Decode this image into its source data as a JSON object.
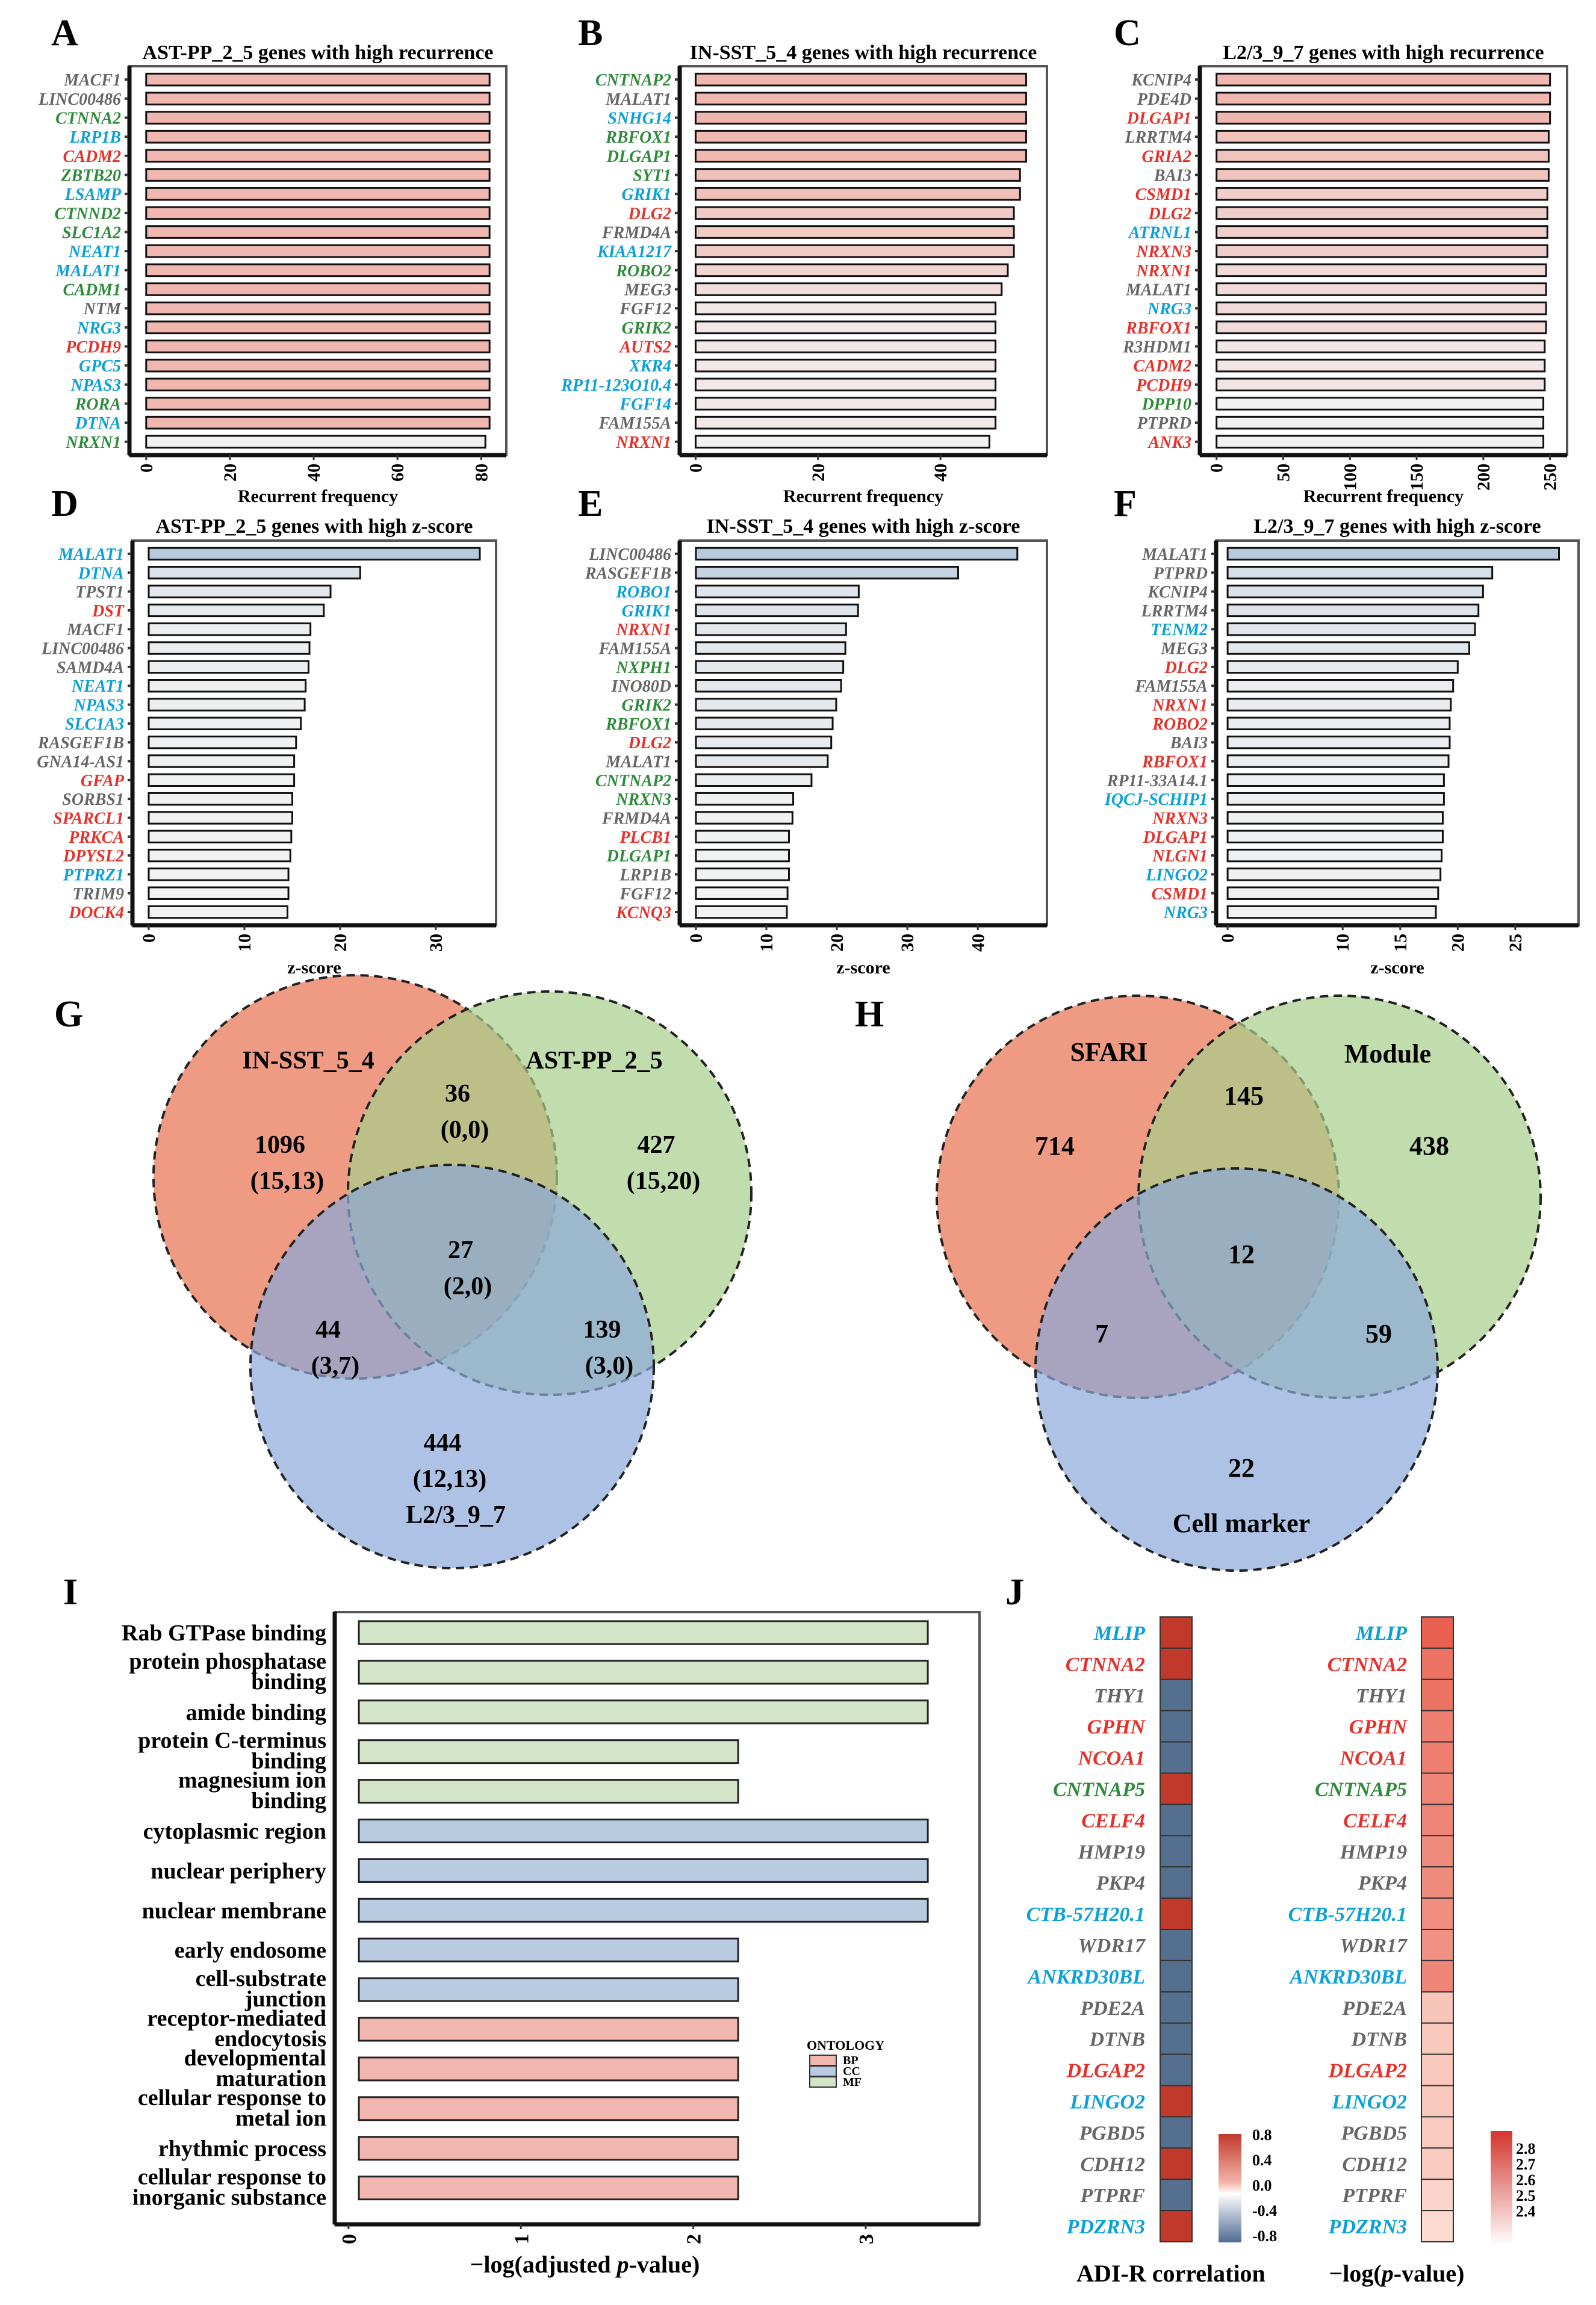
{
  "gene_colors": {
    "gray": "#666666",
    "green": "#2E8B3A",
    "blue": "#0AA0D8",
    "red": "#E8302A"
  },
  "chart_data": [
    {
      "id": "A",
      "panel_label": "A",
      "type": "bar",
      "orientation": "horizontal",
      "title": "AST-PP_2_5 genes with high recurrence",
      "xlabel": "Recurrent frequency",
      "xlim": [
        -4,
        86
      ],
      "ticks": [
        0,
        20,
        40,
        60,
        80
      ],
      "palette": "red",
      "genes": [
        [
          "MACF1",
          82,
          "gray"
        ],
        [
          "LINC00486",
          82,
          "gray"
        ],
        [
          "CTNNA2",
          82,
          "green"
        ],
        [
          "LRP1B",
          82,
          "blue"
        ],
        [
          "CADM2",
          82,
          "red"
        ],
        [
          "ZBTB20",
          82,
          "green"
        ],
        [
          "LSAMP",
          82,
          "blue"
        ],
        [
          "CTNND2",
          82,
          "green"
        ],
        [
          "SLC1A2",
          82,
          "green"
        ],
        [
          "NEAT1",
          82,
          "blue"
        ],
        [
          "MALAT1",
          82,
          "blue"
        ],
        [
          "CADM1",
          82,
          "green"
        ],
        [
          "NTM",
          82,
          "gray"
        ],
        [
          "NRG3",
          82,
          "blue"
        ],
        [
          "PCDH9",
          82,
          "red"
        ],
        [
          "GPC5",
          82,
          "blue"
        ],
        [
          "NPAS3",
          82,
          "blue"
        ],
        [
          "RORA",
          82,
          "green"
        ],
        [
          "DTNA",
          82,
          "blue"
        ],
        [
          "NRXN1",
          81,
          "green"
        ]
      ]
    },
    {
      "id": "B",
      "panel_label": "B",
      "type": "bar",
      "orientation": "horizontal",
      "title": "IN-SST_5_4 genes with high recurrence",
      "xlabel": "Recurrent frequency",
      "xlim": [
        -2.6,
        57.4
      ],
      "ticks": [
        0,
        20,
        40
      ],
      "palette": "red",
      "genes": [
        [
          "CNTNAP2",
          54,
          "green"
        ],
        [
          "MALAT1",
          54,
          "gray"
        ],
        [
          "SNHG14",
          54,
          "blue"
        ],
        [
          "RBFOX1",
          54,
          "green"
        ],
        [
          "DLGAP1",
          54,
          "green"
        ],
        [
          "SYT1",
          53,
          "green"
        ],
        [
          "GRIK1",
          53,
          "blue"
        ],
        [
          "DLG2",
          52,
          "red"
        ],
        [
          "FRMD4A",
          52,
          "gray"
        ],
        [
          "KIAA1217",
          52,
          "blue"
        ],
        [
          "ROBO2",
          51,
          "green"
        ],
        [
          "MEG3",
          50,
          "gray"
        ],
        [
          "FGF12",
          49,
          "gray"
        ],
        [
          "GRIK2",
          49,
          "green"
        ],
        [
          "AUTS2",
          49,
          "red"
        ],
        [
          "XKR4",
          49,
          "blue"
        ],
        [
          "RP11-123O10.4",
          49,
          "blue"
        ],
        [
          "FGF14",
          49,
          "blue"
        ],
        [
          "FAM155A",
          49,
          "gray"
        ],
        [
          "NRXN1",
          48,
          "red"
        ]
      ]
    },
    {
      "id": "C",
      "panel_label": "C",
      "type": "bar",
      "orientation": "horizontal",
      "title": "L2/3_9_7 genes with high recurrence",
      "xlabel": "Recurrent frequency",
      "xlim": [
        -12.5,
        262.8
      ],
      "ticks": [
        0,
        50,
        100,
        150,
        200,
        250
      ],
      "palette": "red",
      "genes": [
        [
          "KCNIP4",
          250,
          "gray"
        ],
        [
          "PDE4D",
          250,
          "gray"
        ],
        [
          "DLGAP1",
          250,
          "red"
        ],
        [
          "LRRTM4",
          249,
          "gray"
        ],
        [
          "GRIA2",
          249,
          "red"
        ],
        [
          "BAI3",
          249,
          "gray"
        ],
        [
          "CSMD1",
          248,
          "red"
        ],
        [
          "DLG2",
          248,
          "red"
        ],
        [
          "ATRNL1",
          248,
          "blue"
        ],
        [
          "NRXN3",
          248,
          "red"
        ],
        [
          "NRXN1",
          247,
          "red"
        ],
        [
          "MALAT1",
          247,
          "gray"
        ],
        [
          "NRG3",
          247,
          "blue"
        ],
        [
          "RBFOX1",
          247,
          "red"
        ],
        [
          "R3HDM1",
          246,
          "gray"
        ],
        [
          "CADM2",
          246,
          "red"
        ],
        [
          "PCDH9",
          246,
          "red"
        ],
        [
          "DPP10",
          245,
          "green"
        ],
        [
          "PTPRD",
          245,
          "gray"
        ],
        [
          "ANK3",
          245,
          "red"
        ]
      ]
    },
    {
      "id": "D",
      "panel_label": "D",
      "type": "bar",
      "orientation": "horizontal",
      "title": "AST-PP_2_5 genes with high z-score",
      "xlabel": "z-score",
      "xlim": [
        -1.7,
        36.3
      ],
      "ticks": [
        0,
        10,
        20,
        30
      ],
      "palette": "blue",
      "genes": [
        [
          "MALAT1",
          34.6,
          "blue"
        ],
        [
          "DTNA",
          22.1,
          "blue"
        ],
        [
          "TPST1",
          19.0,
          "gray"
        ],
        [
          "DST",
          18.3,
          "red"
        ],
        [
          "MACF1",
          16.9,
          "gray"
        ],
        [
          "LINC00486",
          16.8,
          "gray"
        ],
        [
          "SAMD4A",
          16.7,
          "gray"
        ],
        [
          "NEAT1",
          16.4,
          "blue"
        ],
        [
          "NPAS3",
          16.3,
          "blue"
        ],
        [
          "SLC1A3",
          15.9,
          "blue"
        ],
        [
          "RASGEF1B",
          15.4,
          "gray"
        ],
        [
          "GNA14-AS1",
          15.2,
          "gray"
        ],
        [
          "GFAP",
          15.2,
          "red"
        ],
        [
          "SORBS1",
          15.0,
          "gray"
        ],
        [
          "SPARCL1",
          15.0,
          "red"
        ],
        [
          "PRKCA",
          14.9,
          "red"
        ],
        [
          "DPYSL2",
          14.8,
          "red"
        ],
        [
          "PTPRZ1",
          14.6,
          "blue"
        ],
        [
          "TRIM9",
          14.6,
          "gray"
        ],
        [
          "DOCK4",
          14.5,
          "red"
        ]
      ]
    },
    {
      "id": "E",
      "panel_label": "E",
      "type": "bar",
      "orientation": "horizontal",
      "title": "IN-SST_5_4 genes with high z-score",
      "xlabel": "z-score",
      "xlim": [
        -2.3,
        49.8
      ],
      "ticks": [
        0,
        10,
        20,
        30,
        40
      ],
      "palette": "blue",
      "genes": [
        [
          "LINC00486",
          45.6,
          "gray"
        ],
        [
          "RASGEF1B",
          37.2,
          "gray"
        ],
        [
          "ROBO1",
          23.1,
          "blue"
        ],
        [
          "GRIK1",
          23.0,
          "blue"
        ],
        [
          "NRXN1",
          21.3,
          "red"
        ],
        [
          "FAM155A",
          21.2,
          "gray"
        ],
        [
          "NXPH1",
          20.9,
          "green"
        ],
        [
          "INO80D",
          20.6,
          "gray"
        ],
        [
          "GRIK2",
          19.9,
          "green"
        ],
        [
          "RBFOX1",
          19.4,
          "green"
        ],
        [
          "DLG2",
          19.2,
          "red"
        ],
        [
          "MALAT1",
          18.7,
          "gray"
        ],
        [
          "CNTNAP2",
          16.4,
          "green"
        ],
        [
          "NRXN3",
          13.8,
          "green"
        ],
        [
          "FRMD4A",
          13.7,
          "gray"
        ],
        [
          "PLCB1",
          13.2,
          "red"
        ],
        [
          "DLGAP1",
          13.2,
          "green"
        ],
        [
          "LRP1B",
          13.2,
          "gray"
        ],
        [
          "FGF12",
          13.0,
          "gray"
        ],
        [
          "KCNQ3",
          12.9,
          "red"
        ]
      ]
    },
    {
      "id": "F",
      "panel_label": "F",
      "type": "bar",
      "orientation": "horizontal",
      "title": "L2/3_9_7 genes with high z-score",
      "xlabel": "z-score",
      "xlim": [
        -1,
        30.5
      ],
      "ticks": [
        0,
        10,
        15,
        20,
        25
      ],
      "palette": "blue",
      "genes": [
        [
          "MALAT1",
          28.8,
          "gray"
        ],
        [
          "PTPRD",
          23.0,
          "gray"
        ],
        [
          "KCNIP4",
          22.2,
          "gray"
        ],
        [
          "LRRTM4",
          21.8,
          "gray"
        ],
        [
          "TENM2",
          21.5,
          "blue"
        ],
        [
          "MEG3",
          21.0,
          "gray"
        ],
        [
          "DLG2",
          20.0,
          "red"
        ],
        [
          "FAM155A",
          19.6,
          "gray"
        ],
        [
          "NRXN1",
          19.4,
          "red"
        ],
        [
          "ROBO2",
          19.3,
          "red"
        ],
        [
          "BAI3",
          19.3,
          "gray"
        ],
        [
          "RBFOX1",
          19.2,
          "red"
        ],
        [
          "RP11-33A14.1",
          18.8,
          "gray"
        ],
        [
          "IQCJ-SCHIP1",
          18.8,
          "blue"
        ],
        [
          "NRXN3",
          18.7,
          "red"
        ],
        [
          "DLGAP1",
          18.7,
          "red"
        ],
        [
          "NLGN1",
          18.6,
          "red"
        ],
        [
          "LINGO2",
          18.5,
          "blue"
        ],
        [
          "CSMD1",
          18.3,
          "red"
        ],
        [
          "NRG3",
          18.1,
          "blue"
        ]
      ]
    },
    {
      "id": "I",
      "panel_label": "I",
      "type": "bar",
      "orientation": "horizontal",
      "xlabel_pre": "−log(adjusted ",
      "xlabel_italic": "p",
      "xlabel_post": "-value)",
      "xlim": [
        -0.08,
        3.66
      ],
      "ticks": [
        0,
        1,
        2,
        3
      ],
      "legend": {
        "title": "ONTOLOGY",
        "entries": [
          {
            "name": "BP",
            "color": "#F0B6AF"
          },
          {
            "name": "CC",
            "color": "#B8CBE0"
          },
          {
            "name": "MF",
            "color": "#D3E4C8"
          }
        ],
        "position": "right"
      },
      "terms": [
        {
          "lines": [
            "Rab GTPase binding"
          ],
          "value": 3.36,
          "ontology": "MF"
        },
        {
          "lines": [
            "protein phosphatase",
            "binding"
          ],
          "value": 3.36,
          "ontology": "MF"
        },
        {
          "lines": [
            "amide binding"
          ],
          "value": 3.36,
          "ontology": "MF"
        },
        {
          "lines": [
            "protein C-terminus",
            "binding"
          ],
          "value": 2.26,
          "ontology": "MF"
        },
        {
          "lines": [
            "magnesium ion",
            "binding"
          ],
          "value": 2.26,
          "ontology": "MF"
        },
        {
          "lines": [
            "cytoplasmic region"
          ],
          "value": 3.36,
          "ontology": "CC"
        },
        {
          "lines": [
            "nuclear periphery"
          ],
          "value": 3.36,
          "ontology": "CC"
        },
        {
          "lines": [
            "nuclear membrane"
          ],
          "value": 3.36,
          "ontology": "CC"
        },
        {
          "lines": [
            "early endosome"
          ],
          "value": 2.26,
          "ontology": "CC"
        },
        {
          "lines": [
            "cell-substrate",
            "junction"
          ],
          "value": 2.26,
          "ontology": "CC"
        },
        {
          "lines": [
            "receptor-mediated",
            "endocytosis"
          ],
          "value": 2.26,
          "ontology": "BP"
        },
        {
          "lines": [
            "developmental",
            "maturation"
          ],
          "value": 2.26,
          "ontology": "BP"
        },
        {
          "lines": [
            "cellular response to",
            "metal ion"
          ],
          "value": 2.26,
          "ontology": "BP"
        },
        {
          "lines": [
            "rhythmic process"
          ],
          "value": 2.26,
          "ontology": "BP"
        },
        {
          "lines": [
            "cellular response to",
            "inorganic substance"
          ],
          "value": 2.26,
          "ontology": "BP"
        }
      ]
    },
    {
      "id": "J",
      "panel_label": "J",
      "type": "heatmap",
      "genes": [
        [
          "MLIP",
          "blue"
        ],
        [
          "CTNNA2",
          "red"
        ],
        [
          "THY1",
          "gray"
        ],
        [
          "GPHN",
          "red"
        ],
        [
          "NCOA1",
          "red"
        ],
        [
          "CNTNAP5",
          "green"
        ],
        [
          "CELF4",
          "red"
        ],
        [
          "HMP19",
          "gray"
        ],
        [
          "PKP4",
          "gray"
        ],
        [
          "CTB-57H20.1",
          "blue"
        ],
        [
          "WDR17",
          "gray"
        ],
        [
          "ANKRD30BL",
          "blue"
        ],
        [
          "PDE2A",
          "gray"
        ],
        [
          "DTNB",
          "gray"
        ],
        [
          "DLGAP2",
          "red"
        ],
        [
          "LINGO2",
          "blue"
        ],
        [
          "PGBD5",
          "gray"
        ],
        [
          "CDH12",
          "gray"
        ],
        [
          "PTPRF",
          "gray"
        ],
        [
          "PDZRN3",
          "blue"
        ]
      ],
      "correlation": {
        "title": "ADI-R correlation",
        "values": [
          0.8,
          0.8,
          -0.8,
          -0.8,
          -0.8,
          0.8,
          -0.8,
          -0.8,
          -0.8,
          0.8,
          -0.8,
          -0.8,
          -0.8,
          -0.8,
          -0.8,
          0.8,
          -0.8,
          0.8,
          -0.8,
          0.8
        ],
        "scale_labels": [
          "0.8",
          "0.4",
          "0.0",
          "-0.4",
          "-0.8"
        ],
        "range": [
          -0.8,
          0.8
        ]
      },
      "neglogp": {
        "title_pre": "−log(",
        "title_italic": "p",
        "title_post": "-value)",
        "values": [
          2.78,
          2.72,
          2.72,
          2.68,
          2.68,
          2.66,
          2.66,
          2.64,
          2.64,
          2.63,
          2.62,
          2.66,
          2.45,
          2.44,
          2.44,
          2.44,
          2.43,
          2.43,
          2.4,
          2.38
        ],
        "scale_labels": [
          "2.8",
          "2.7",
          "2.6",
          "2.5",
          "2.4"
        ],
        "range": [
          2.35,
          2.85
        ]
      }
    }
  ],
  "venn_G": {
    "panel_label": "G",
    "sets": [
      "IN-SST_5_4",
      "AST-PP_2_5",
      "L2/3_9_7"
    ],
    "regions": {
      "a_only": [
        "1096",
        "(15,13)"
      ],
      "ab": [
        "36",
        "(0,0)"
      ],
      "b_only": [
        "427",
        "(15,20)"
      ],
      "abc": [
        "27",
        "(2,0)"
      ],
      "ac": [
        "44",
        "(3,7)"
      ],
      "bc": [
        "139",
        "(3,0)"
      ],
      "c_only": [
        "444",
        "(12,13)"
      ]
    }
  },
  "venn_H": {
    "panel_label": "H",
    "sets": [
      "SFARI",
      "Module",
      "Cell marker"
    ],
    "regions": {
      "a_only": "714",
      "ab": "145",
      "b_only": "438",
      "abc": "12",
      "ac": "7",
      "bc": "59",
      "c_only": "22"
    }
  }
}
